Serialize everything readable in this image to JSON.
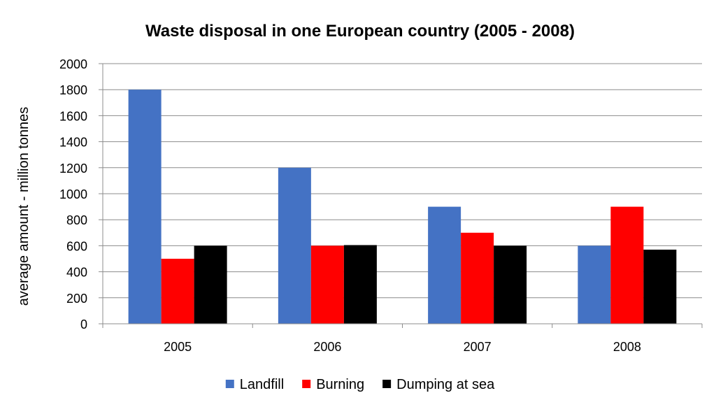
{
  "chart_data": {
    "type": "bar",
    "title": "Waste disposal in one European country (2005 - 2008)",
    "xlabel": "",
    "ylabel": "average amount - million tonnes",
    "categories": [
      "2005",
      "2006",
      "2007",
      "2008"
    ],
    "series": [
      {
        "name": "Landfill",
        "color": "#4472C4",
        "values": [
          1800,
          1200,
          900,
          600
        ]
      },
      {
        "name": "Burning",
        "color": "#FF0000",
        "values": [
          500,
          600,
          700,
          900
        ]
      },
      {
        "name": "Dumping at sea",
        "color": "#000000",
        "values": [
          600,
          605,
          600,
          570
        ]
      }
    ],
    "ylim": [
      0,
      2000
    ],
    "yticks": [
      0,
      200,
      400,
      600,
      800,
      1000,
      1200,
      1400,
      1600,
      1800,
      2000
    ],
    "grid": true,
    "legend_position": "bottom"
  }
}
